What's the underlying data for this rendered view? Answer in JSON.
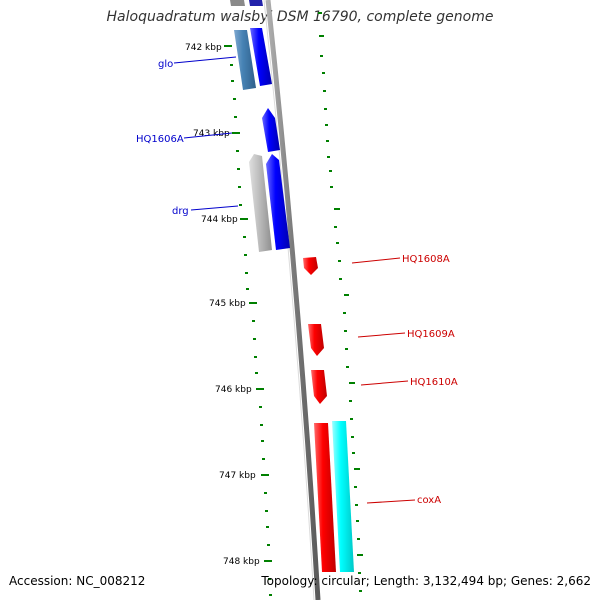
{
  "title": "Haloquadratum walsbyi DSM 16790, complete genome",
  "footer": {
    "accession": "Accession: NC_008212",
    "summary": "Topology: circular; Length: 3,132,494 bp; Genes: 2,662"
  },
  "ticks": [
    "742 kbp",
    "743 kbp",
    "744 kbp",
    "745 kbp",
    "746 kbp",
    "747 kbp",
    "748 kbp"
  ],
  "genes": [
    {
      "label": "glo",
      "strand": "reverse",
      "color": "#0000cc"
    },
    {
      "label": "HQ1606A",
      "strand": "reverse",
      "color": "#0000cc"
    },
    {
      "label": "drg",
      "strand": "reverse",
      "color": "#0000cc"
    },
    {
      "label": "HQ1608A",
      "strand": "forward",
      "color": "#cc0000"
    },
    {
      "label": "HQ1609A",
      "strand": "forward",
      "color": "#cc0000"
    },
    {
      "label": "HQ1610A",
      "strand": "forward",
      "color": "#cc0000"
    },
    {
      "label": "coxA",
      "strand": "forward",
      "color": "#cc0000"
    }
  ],
  "colors": {
    "forward_gene": "#ff0000",
    "reverse_gene": "#0000ff",
    "cds_forward": "#00ffff",
    "cds_reverse": "#b0b0b0",
    "cds_reverse_dark": "#4682b4",
    "backbone": "#808080",
    "tick": "#008000"
  }
}
